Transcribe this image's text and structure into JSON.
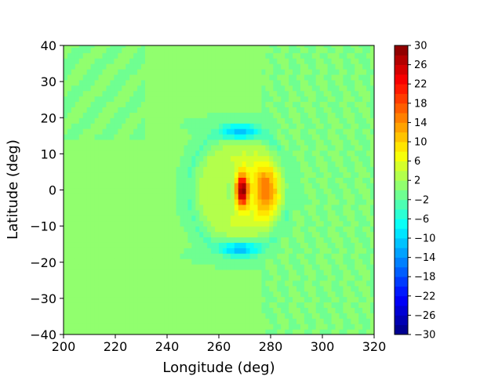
{
  "chart_data": {
    "type": "heatmap",
    "title": "",
    "xlabel": "Longitude (deg)",
    "ylabel": "Latitude (deg)",
    "xlim": [
      200,
      320
    ],
    "ylim": [
      -40,
      40
    ],
    "xticks": [
      200,
      220,
      240,
      260,
      280,
      300,
      320
    ],
    "yticks": [
      -40,
      -30,
      -20,
      -10,
      0,
      10,
      20,
      30,
      40
    ],
    "xtick_labels": [
      "200",
      "220",
      "240",
      "260",
      "280",
      "300",
      "320"
    ],
    "ytick_labels": [
      "−40",
      "−30",
      "−20",
      "−10",
      "0",
      "10",
      "20",
      "30",
      "40"
    ],
    "colormap": "jet",
    "colorbar": {
      "min": -30,
      "max": 30,
      "levels": [
        -30,
        -28,
        -26,
        -24,
        -22,
        -20,
        -18,
        -16,
        -14,
        -12,
        -10,
        -8,
        -6,
        -4,
        -2,
        0,
        2,
        4,
        6,
        8,
        10,
        12,
        14,
        16,
        18,
        20,
        22,
        24,
        26,
        28,
        30
      ],
      "tick_values": [
        -30,
        -26,
        -22,
        -18,
        -14,
        -10,
        -6,
        -2,
        2,
        6,
        10,
        14,
        18,
        22,
        26,
        30
      ],
      "tick_labels": [
        "−30",
        "−26",
        "−22",
        "−18",
        "−14",
        "−10",
        "−6",
        "−2",
        "2",
        "6",
        "10",
        "14",
        "18",
        "22",
        "26",
        "30"
      ]
    },
    "grid": false,
    "features": [
      {
        "kind": "peak",
        "lon": 269,
        "lat": 0,
        "value": 30
      },
      {
        "kind": "positive-lobe",
        "lon": 278,
        "lat": 0,
        "value": 12
      },
      {
        "kind": "ring",
        "lon": 268,
        "lat": 0,
        "radius_deg": 18,
        "value": 4
      },
      {
        "kind": "negative-arc",
        "lon": 268,
        "lat": 16,
        "value": -10
      },
      {
        "kind": "negative-arc",
        "lon": 268,
        "lat": -16,
        "value": -10
      },
      {
        "kind": "background",
        "value": 0
      }
    ]
  }
}
